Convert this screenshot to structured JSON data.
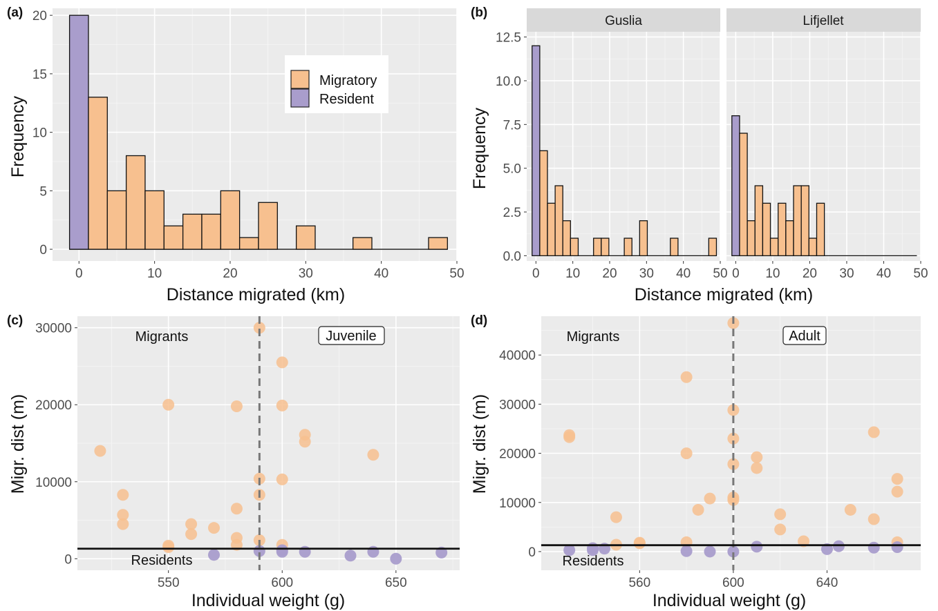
{
  "colors": {
    "migratory": "#f7c08f",
    "resident": "#a99dcc",
    "panel_bg": "#ebebeb",
    "grid": "#ffffff",
    "strip_bg": "#d9d9d9"
  },
  "panels": {
    "a": {
      "label": "(a)"
    },
    "b": {
      "label": "(b)"
    },
    "c": {
      "label": "(c)",
      "migrants": "Migrants",
      "residents": "Residents",
      "box": "Juvenile"
    },
    "d": {
      "label": "(d)",
      "migrants": "Migrants",
      "residents": "Residents",
      "box": "Adult"
    }
  },
  "legend": {
    "migratory": "Migratory",
    "resident": "Resident"
  },
  "chart_data": [
    {
      "id": "a",
      "type": "bar",
      "xlabel": "Distance migrated (km)",
      "ylabel": "Frequency",
      "xlim": [
        -3.5,
        50
      ],
      "ylim": [
        -1,
        20.6
      ],
      "xticks": [
        0,
        10,
        20,
        30,
        40,
        50
      ],
      "yticks": [
        0,
        5,
        10,
        15,
        20
      ],
      "binwidth": 2.5,
      "series": [
        {
          "name": "Resident",
          "bins": [
            {
              "x": 0,
              "count": 20
            }
          ]
        },
        {
          "name": "Migratory",
          "bins": [
            {
              "x": 2.5,
              "count": 13
            },
            {
              "x": 5,
              "count": 5
            },
            {
              "x": 7.5,
              "count": 8
            },
            {
              "x": 10,
              "count": 5
            },
            {
              "x": 12.5,
              "count": 2
            },
            {
              "x": 15,
              "count": 3
            },
            {
              "x": 17.5,
              "count": 3
            },
            {
              "x": 20,
              "count": 5
            },
            {
              "x": 22.5,
              "count": 1
            },
            {
              "x": 25,
              "count": 4
            },
            {
              "x": 27.5,
              "count": 0
            },
            {
              "x": 30,
              "count": 2
            },
            {
              "x": 32.5,
              "count": 0
            },
            {
              "x": 35,
              "count": 0
            },
            {
              "x": 37.5,
              "count": 1
            },
            {
              "x": 40,
              "count": 0
            },
            {
              "x": 42.5,
              "count": 0
            },
            {
              "x": 45,
              "count": 0
            },
            {
              "x": 47.5,
              "count": 1
            }
          ]
        }
      ]
    },
    {
      "id": "b",
      "type": "bar",
      "xlabel": "Distance migrated (km)",
      "ylabel": "Frequency",
      "xlim": [
        -2.5,
        50
      ],
      "ylim": [
        -0.3,
        12.8
      ],
      "xticks": [
        0,
        10,
        20,
        30,
        40,
        50
      ],
      "yticks": [
        0.0,
        2.5,
        5.0,
        7.5,
        10.0,
        12.5
      ],
      "ytick_labels": [
        "0.0",
        "2.5",
        "5.0",
        "7.5",
        "10.0",
        "12.5"
      ],
      "binwidth": 2.08,
      "facets": [
        {
          "name": "Guslia",
          "resident": [
            {
              "x": 0,
              "count": 12
            }
          ],
          "migratory": [
            {
              "x": 2.08,
              "count": 6
            },
            {
              "x": 4.17,
              "count": 3
            },
            {
              "x": 6.25,
              "count": 4
            },
            {
              "x": 8.33,
              "count": 2
            },
            {
              "x": 10.42,
              "count": 1
            },
            {
              "x": 12.5,
              "count": 0
            },
            {
              "x": 14.58,
              "count": 0
            },
            {
              "x": 16.67,
              "count": 1
            },
            {
              "x": 18.75,
              "count": 1
            },
            {
              "x": 20.83,
              "count": 0
            },
            {
              "x": 22.92,
              "count": 0
            },
            {
              "x": 25.0,
              "count": 1
            },
            {
              "x": 27.08,
              "count": 0
            },
            {
              "x": 29.17,
              "count": 2
            },
            {
              "x": 31.25,
              "count": 0
            },
            {
              "x": 33.33,
              "count": 0
            },
            {
              "x": 35.42,
              "count": 0
            },
            {
              "x": 37.5,
              "count": 1
            },
            {
              "x": 39.58,
              "count": 0
            },
            {
              "x": 41.67,
              "count": 0
            },
            {
              "x": 43.75,
              "count": 0
            },
            {
              "x": 45.83,
              "count": 0
            },
            {
              "x": 47.92,
              "count": 1
            }
          ]
        },
        {
          "name": "Lifjellet",
          "resident": [
            {
              "x": 0,
              "count": 8
            }
          ],
          "migratory": [
            {
              "x": 2.08,
              "count": 7
            },
            {
              "x": 4.17,
              "count": 2
            },
            {
              "x": 6.25,
              "count": 4
            },
            {
              "x": 8.33,
              "count": 3
            },
            {
              "x": 10.42,
              "count": 1
            },
            {
              "x": 12.5,
              "count": 3
            },
            {
              "x": 14.58,
              "count": 2
            },
            {
              "x": 16.67,
              "count": 4
            },
            {
              "x": 18.75,
              "count": 4
            },
            {
              "x": 20.83,
              "count": 1
            },
            {
              "x": 22.92,
              "count": 3
            },
            {
              "x": 25.0,
              "count": 0
            },
            {
              "x": 27.08,
              "count": 0
            },
            {
              "x": 29.17,
              "count": 0
            },
            {
              "x": 31.25,
              "count": 0
            },
            {
              "x": 33.33,
              "count": 0
            },
            {
              "x": 35.42,
              "count": 0
            },
            {
              "x": 37.5,
              "count": 0
            },
            {
              "x": 39.58,
              "count": 0
            },
            {
              "x": 41.67,
              "count": 0
            },
            {
              "x": 43.75,
              "count": 0
            },
            {
              "x": 45.83,
              "count": 0
            },
            {
              "x": 47.92,
              "count": 0
            }
          ]
        }
      ]
    },
    {
      "id": "c",
      "type": "scatter",
      "xlabel": "Individual weight (g)",
      "ylabel": "Migr. dist (m)",
      "xlim": [
        510,
        678
      ],
      "ylim": [
        -1500,
        31500
      ],
      "xticks": [
        550,
        600,
        650
      ],
      "yticks": [
        0,
        10000,
        20000,
        30000
      ],
      "vline": 590,
      "hline": 1300,
      "series": [
        {
          "name": "Migratory",
          "points": [
            [
              520,
              14000
            ],
            [
              530,
              8300
            ],
            [
              530,
              5700
            ],
            [
              530,
              4500
            ],
            [
              550,
              20000
            ],
            [
              550,
              1700
            ],
            [
              550,
              1500
            ],
            [
              560,
              4500
            ],
            [
              560,
              3200
            ],
            [
              570,
              4000
            ],
            [
              580,
              19800
            ],
            [
              580,
              6500
            ],
            [
              580,
              2700
            ],
            [
              580,
              1800
            ],
            [
              590,
              30000
            ],
            [
              590,
              10400
            ],
            [
              590,
              8300
            ],
            [
              590,
              2400
            ],
            [
              600,
              25500
            ],
            [
              600,
              19900
            ],
            [
              600,
              10300
            ],
            [
              600,
              1800
            ],
            [
              610,
              16100
            ],
            [
              610,
              15200
            ],
            [
              640,
              13500
            ]
          ]
        },
        {
          "name": "Resident",
          "points": [
            [
              570,
              500
            ],
            [
              590,
              1000
            ],
            [
              600,
              1100
            ],
            [
              600,
              900
            ],
            [
              610,
              900
            ],
            [
              630,
              400
            ],
            [
              640,
              900
            ],
            [
              650,
              0
            ],
            [
              670,
              800
            ]
          ]
        }
      ]
    },
    {
      "id": "d",
      "type": "scatter",
      "xlabel": "Individual weight (g)",
      "ylabel": "Migr. dist (m)",
      "xlim": [
        518,
        680
      ],
      "ylim": [
        -3800,
        47900
      ],
      "xticks": [
        560,
        600,
        640
      ],
      "yticks": [
        0,
        10000,
        20000,
        30000,
        40000
      ],
      "vline": 600,
      "hline": 1300,
      "series": [
        {
          "name": "Migratory",
          "points": [
            [
              530,
              23700
            ],
            [
              530,
              23300
            ],
            [
              550,
              7000
            ],
            [
              550,
              1400
            ],
            [
              560,
              1800
            ],
            [
              560,
              1700
            ],
            [
              580,
              35500
            ],
            [
              580,
              20000
            ],
            [
              580,
              1900
            ],
            [
              585,
              8500
            ],
            [
              590,
              10800
            ],
            [
              600,
              46500
            ],
            [
              600,
              28800
            ],
            [
              600,
              23000
            ],
            [
              600,
              17800
            ],
            [
              600,
              11000
            ],
            [
              600,
              10500
            ],
            [
              610,
              19200
            ],
            [
              610,
              17000
            ],
            [
              620,
              7600
            ],
            [
              620,
              4500
            ],
            [
              630,
              2100
            ],
            [
              650,
              8500
            ],
            [
              660,
              24300
            ],
            [
              660,
              6600
            ],
            [
              670,
              14800
            ],
            [
              670,
              12200
            ],
            [
              670,
              1900
            ]
          ]
        },
        {
          "name": "Resident",
          "points": [
            [
              530,
              300
            ],
            [
              540,
              700
            ],
            [
              540,
              300
            ],
            [
              545,
              600
            ],
            [
              580,
              100
            ],
            [
              590,
              0
            ],
            [
              600,
              0
            ],
            [
              610,
              1000
            ],
            [
              640,
              500
            ],
            [
              645,
              1100
            ],
            [
              660,
              800
            ],
            [
              670,
              900
            ]
          ]
        }
      ]
    }
  ]
}
